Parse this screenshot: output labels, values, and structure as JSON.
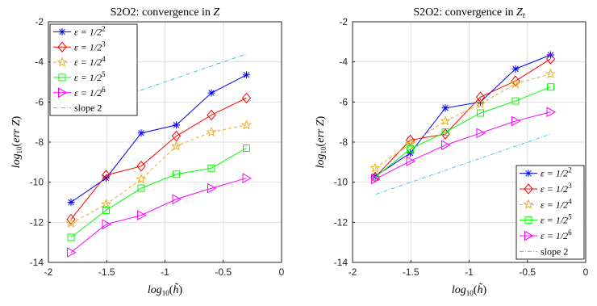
{
  "chart_data": [
    {
      "type": "line",
      "title": "S2O2: convergence in Z",
      "xlabel": "log10(h̃)",
      "ylabel": "log10(errZ)",
      "xlim": [
        -2,
        0
      ],
      "ylim": [
        -14,
        -2
      ],
      "xticks": [
        "-2",
        "-1.5",
        "-1",
        "-0.5",
        "0"
      ],
      "yticks": [
        "-14",
        "-12",
        "-10",
        "-8",
        "-6",
        "-4",
        "-2"
      ],
      "grid": true,
      "legend_position": "top-left",
      "series": [
        {
          "name": "ε = 1/2²",
          "marker": "asterisk",
          "color": "#0000ff",
          "dash": "solid",
          "x": [
            -1.806,
            -1.505,
            -1.204,
            -0.903,
            -0.602,
            -0.301
          ],
          "y": [
            -11.0,
            -9.8,
            -7.55,
            -7.15,
            -5.55,
            -4.65
          ]
        },
        {
          "name": "ε = 1/2³",
          "marker": "diamond",
          "color": "#ff0000",
          "dash": "solid",
          "x": [
            -1.806,
            -1.505,
            -1.204,
            -0.903,
            -0.602,
            -0.301
          ],
          "y": [
            -11.85,
            -9.65,
            -9.2,
            -7.7,
            -6.65,
            -5.8
          ]
        },
        {
          "name": "ε = 1/2⁴",
          "marker": "star",
          "color": "#ecb01f",
          "dash": "dashed",
          "x": [
            -1.806,
            -1.505,
            -1.204,
            -0.903,
            -0.602,
            -0.301
          ],
          "y": [
            -12.05,
            -11.1,
            -9.85,
            -8.2,
            -7.5,
            -7.15
          ]
        },
        {
          "name": "ε = 1/2⁵",
          "marker": "square",
          "color": "#00ff00",
          "dash": "solid",
          "x": [
            -1.806,
            -1.505,
            -1.204,
            -0.903,
            -0.602,
            -0.301
          ],
          "y": [
            -12.75,
            -11.4,
            -10.3,
            -9.6,
            -9.3,
            -8.3
          ]
        },
        {
          "name": "ε = 1/2⁶",
          "marker": "triangle-right",
          "color": "#ff00ff",
          "dash": "solid",
          "x": [
            -1.806,
            -1.505,
            -1.204,
            -0.903,
            -0.602,
            -0.301
          ],
          "y": [
            -13.5,
            -12.1,
            -11.65,
            -10.85,
            -10.3,
            -9.8
          ]
        },
        {
          "name": "slope 2",
          "marker": "none",
          "color": "#4dbeee",
          "dash": "dashdot",
          "x": [
            -1.8,
            -0.3
          ],
          "y": [
            -6.6,
            -3.6
          ]
        }
      ]
    },
    {
      "type": "line",
      "title": "S2O2: convergence in Zt",
      "xlabel": "log10(h̃)",
      "ylabel": "log10(errZt)",
      "xlim": [
        -2,
        0
      ],
      "ylim": [
        -14,
        -2
      ],
      "xticks": [
        "-2",
        "-1.5",
        "-1",
        "-0.5",
        "0"
      ],
      "yticks": [
        "-14",
        "-12",
        "-10",
        "-8",
        "-6",
        "-4",
        "-2"
      ],
      "grid": true,
      "legend_position": "bottom-right",
      "series": [
        {
          "name": "ε = 1/2²",
          "marker": "asterisk",
          "color": "#0000ff",
          "dash": "solid",
          "x": [
            -1.806,
            -1.505,
            -1.204,
            -0.903,
            -0.602,
            -0.301
          ],
          "y": [
            -9.7,
            -8.55,
            -6.3,
            -6.0,
            -4.35,
            -3.65
          ]
        },
        {
          "name": "ε = 1/2³",
          "marker": "diamond",
          "color": "#ff0000",
          "dash": "solid",
          "x": [
            -1.806,
            -1.505,
            -1.204,
            -0.903,
            -0.602,
            -0.301
          ],
          "y": [
            -9.75,
            -7.9,
            -7.6,
            -5.75,
            -4.95,
            -3.85
          ]
        },
        {
          "name": "ε = 1/2⁴",
          "marker": "star",
          "color": "#ecb01f",
          "dash": "dashed",
          "x": [
            -1.806,
            -1.505,
            -1.204,
            -0.903,
            -0.602,
            -0.301
          ],
          "y": [
            -9.3,
            -8.1,
            -6.95,
            -6.1,
            -5.1,
            -4.6
          ]
        },
        {
          "name": "ε = 1/2⁵",
          "marker": "square",
          "color": "#00ff00",
          "dash": "solid",
          "x": [
            -1.806,
            -1.505,
            -1.204,
            -0.903,
            -0.602,
            -0.301
          ],
          "y": [
            -9.75,
            -8.35,
            -7.5,
            -6.55,
            -5.95,
            -5.25
          ]
        },
        {
          "name": "ε = 1/2⁶",
          "marker": "triangle-right",
          "color": "#ff00ff",
          "dash": "solid",
          "x": [
            -1.806,
            -1.505,
            -1.204,
            -0.903,
            -0.602,
            -0.301
          ],
          "y": [
            -9.85,
            -8.95,
            -8.15,
            -7.55,
            -6.95,
            -6.5
          ]
        },
        {
          "name": "slope 2",
          "marker": "none",
          "color": "#4dbeee",
          "dash": "dashdot",
          "x": [
            -1.8,
            -0.3
          ],
          "y": [
            -10.6,
            -7.6
          ]
        }
      ]
    }
  ]
}
